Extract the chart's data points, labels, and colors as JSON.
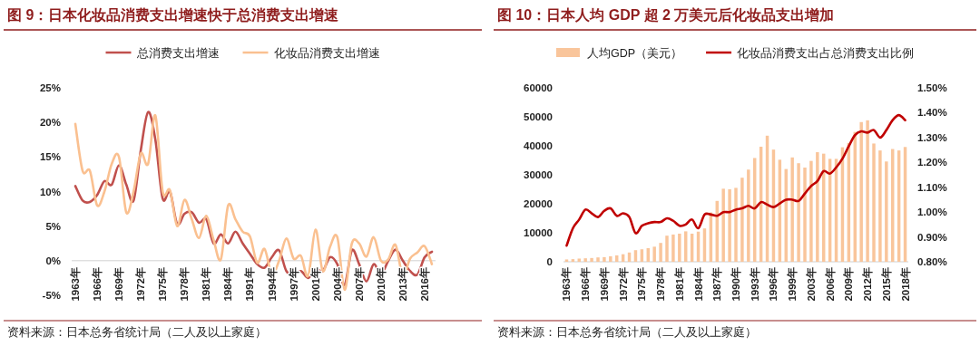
{
  "chart_data": [
    {
      "type": "line",
      "title": "图 9：日本化妆品消费支出增速快于总消费支出增速",
      "legend": "top",
      "categories": [
        "1963年",
        null,
        null,
        "1966年",
        null,
        null,
        "1969年",
        null,
        null,
        "1972年",
        null,
        null,
        "1975年",
        null,
        null,
        "1978年",
        null,
        null,
        "1981年",
        null,
        null,
        "1984年",
        null,
        null,
        "1991年",
        null,
        null,
        "1994年",
        null,
        null,
        "1997年",
        null,
        null,
        "2001年",
        null,
        null,
        "2004年",
        null,
        null,
        "2007年",
        null,
        null,
        "2010年",
        null,
        null,
        "2013年",
        null,
        null,
        "2016年",
        null
      ],
      "series": [
        {
          "name": "总消费支出增速",
          "color": "#c0504d",
          "values": [
            10.8,
            8.7,
            8.5,
            9.5,
            11.5,
            11.0,
            13.8,
            11.0,
            8.7,
            16,
            21.5,
            17.5,
            9,
            10,
            5.3,
            6.8,
            7,
            5.5,
            6,
            2.5,
            3.8,
            2.5,
            4.2,
            2.5,
            1,
            -0.5,
            -1,
            0.5,
            1.5,
            -1.5,
            -2,
            -1.5,
            -2.5,
            -1.2,
            -1.5,
            0.5,
            -0.5,
            -3.5,
            1.5,
            -0.5,
            -3,
            -0.5,
            -2,
            0,
            1.6,
            0,
            -1.5,
            -2,
            0.5,
            1.3
          ]
        },
        {
          "name": "化妆品消费支出增速",
          "color": "#fac090",
          "values": [
            19.8,
            13,
            13,
            8,
            10,
            14,
            15,
            7,
            10,
            15.5,
            14,
            21,
            10,
            10.2,
            5,
            8.8,
            6,
            3.3,
            6.5,
            3,
            0.2,
            8,
            6,
            4.2,
            3.5,
            -0.3,
            1.7,
            -2,
            0,
            3.2,
            0.3,
            0.7,
            -2.2,
            4.5,
            -1.5,
            2,
            3.4,
            -4.2,
            2.5,
            2.5,
            0.6,
            3.4,
            0,
            0.2,
            2.3,
            -2.2,
            0.3,
            1.2,
            2.1,
            -0.5
          ]
        }
      ],
      "ylim": [
        -5,
        25
      ],
      "yticks": [
        {
          "value": -5,
          "label": "-5%"
        },
        {
          "value": 0,
          "label": "0%"
        },
        {
          "value": 5,
          "label": "5%"
        },
        {
          "value": 10,
          "label": "10%"
        },
        {
          "value": 15,
          "label": "15%"
        },
        {
          "value": 20,
          "label": "20%"
        },
        {
          "value": 25,
          "label": "25%"
        }
      ],
      "annotations": [
        "资料来源：日本总务省统计局（二人及以上家庭）"
      ]
    },
    {
      "type": "bar",
      "title": "图 10：日本人均 GDP 超 2 万美元后化妆品支出增加",
      "legend": "top",
      "categories": [
        "1963年",
        null,
        null,
        "1966年",
        null,
        null,
        "1969年",
        null,
        null,
        "1972年",
        null,
        null,
        "1975年",
        null,
        null,
        "1978年",
        null,
        null,
        "1981年",
        null,
        null,
        "1984年",
        null,
        null,
        "1987年",
        null,
        null,
        "1990年",
        null,
        null,
        "1993年",
        null,
        null,
        "1996年",
        null,
        null,
        "1999年",
        null,
        null,
        "2003年",
        null,
        null,
        "2006年",
        null,
        null,
        "2009年",
        null,
        null,
        "2012年",
        null,
        null,
        "2015年",
        null,
        null,
        "2018年"
      ],
      "series": [
        {
          "name": "人均GDP（美元）",
          "type": "bar",
          "color": "#f9c59b",
          "values": [
            800,
            900,
            1100,
            1200,
            1300,
            1500,
            1600,
            1900,
            2200,
            2600,
            3200,
            4000,
            4300,
            4700,
            5200,
            6500,
            9000,
            9400,
            9700,
            10500,
            9700,
            10400,
            11500,
            17000,
            21000,
            25200,
            25000,
            25500,
            29000,
            31800,
            35800,
            39700,
            43500,
            38700,
            35200,
            32000,
            36000,
            34000,
            32500,
            34800,
            37800,
            37300,
            35500,
            35500,
            39500,
            41000,
            44800,
            48200,
            48800,
            40800,
            38400,
            34600,
            38900,
            38400,
            39600
          ]
        },
        {
          "name": "化妆品消费支出占总消费支出比例",
          "type": "line",
          "axis": "y2",
          "color": "#c00000",
          "values": [
            0.865,
            0.935,
            0.97,
            1.01,
            0.995,
            0.98,
            1.005,
            1.015,
            0.985,
            0.995,
            0.98,
            0.915,
            0.945,
            0.955,
            0.96,
            0.96,
            0.975,
            0.965,
            0.945,
            0.95,
            0.97,
            0.935,
            0.99,
            0.99,
            0.985,
            1.0,
            1.0,
            1.01,
            1.015,
            1.025,
            1.015,
            1.04,
            1.03,
            1.02,
            1.035,
            1.05,
            1.05,
            1.045,
            1.075,
            1.105,
            1.125,
            1.165,
            1.155,
            1.18,
            1.215,
            1.265,
            1.31,
            1.325,
            1.32,
            1.33,
            1.3,
            1.33,
            1.37,
            1.39,
            1.37
          ]
        }
      ],
      "ylim": [
        0,
        60000
      ],
      "yticks": [
        0,
        10000,
        20000,
        30000,
        40000,
        50000,
        60000
      ],
      "y2lim": [
        0.8,
        1.5
      ],
      "y2ticks": [
        {
          "value": 0.8,
          "label": "0.80%"
        },
        {
          "value": 0.9,
          "label": "0.90%"
        },
        {
          "value": 1.0,
          "label": "1.00%"
        },
        {
          "value": 1.1,
          "label": "1.10%"
        },
        {
          "value": 1.2,
          "label": "1.20%"
        },
        {
          "value": 1.3,
          "label": "1.30%"
        },
        {
          "value": 1.4,
          "label": "1.40%"
        },
        {
          "value": 1.5,
          "label": "1.50%"
        }
      ],
      "annotations": [
        "资料来源：日本总务省统计局（二人及以上家庭）"
      ]
    }
  ]
}
